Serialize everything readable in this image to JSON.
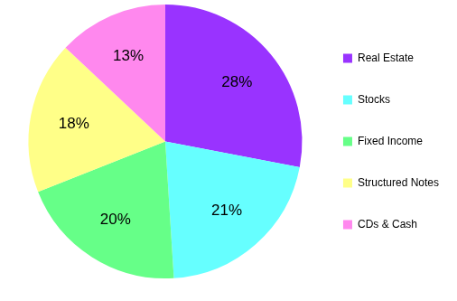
{
  "chart_data": {
    "type": "pie",
    "categories": [
      "Real Estate",
      "Stocks",
      "Fixed Income",
      "Structured Notes",
      "CDs & Cash"
    ],
    "values": [
      28,
      21,
      20,
      18,
      13
    ],
    "value_labels": [
      "28%",
      "21%",
      "20%",
      "18%",
      "13%"
    ],
    "colors": [
      "#9933ff",
      "#66ffff",
      "#66ff88",
      "#ffff88",
      "#ff88ee"
    ],
    "legend": "right",
    "data_labels": true
  }
}
